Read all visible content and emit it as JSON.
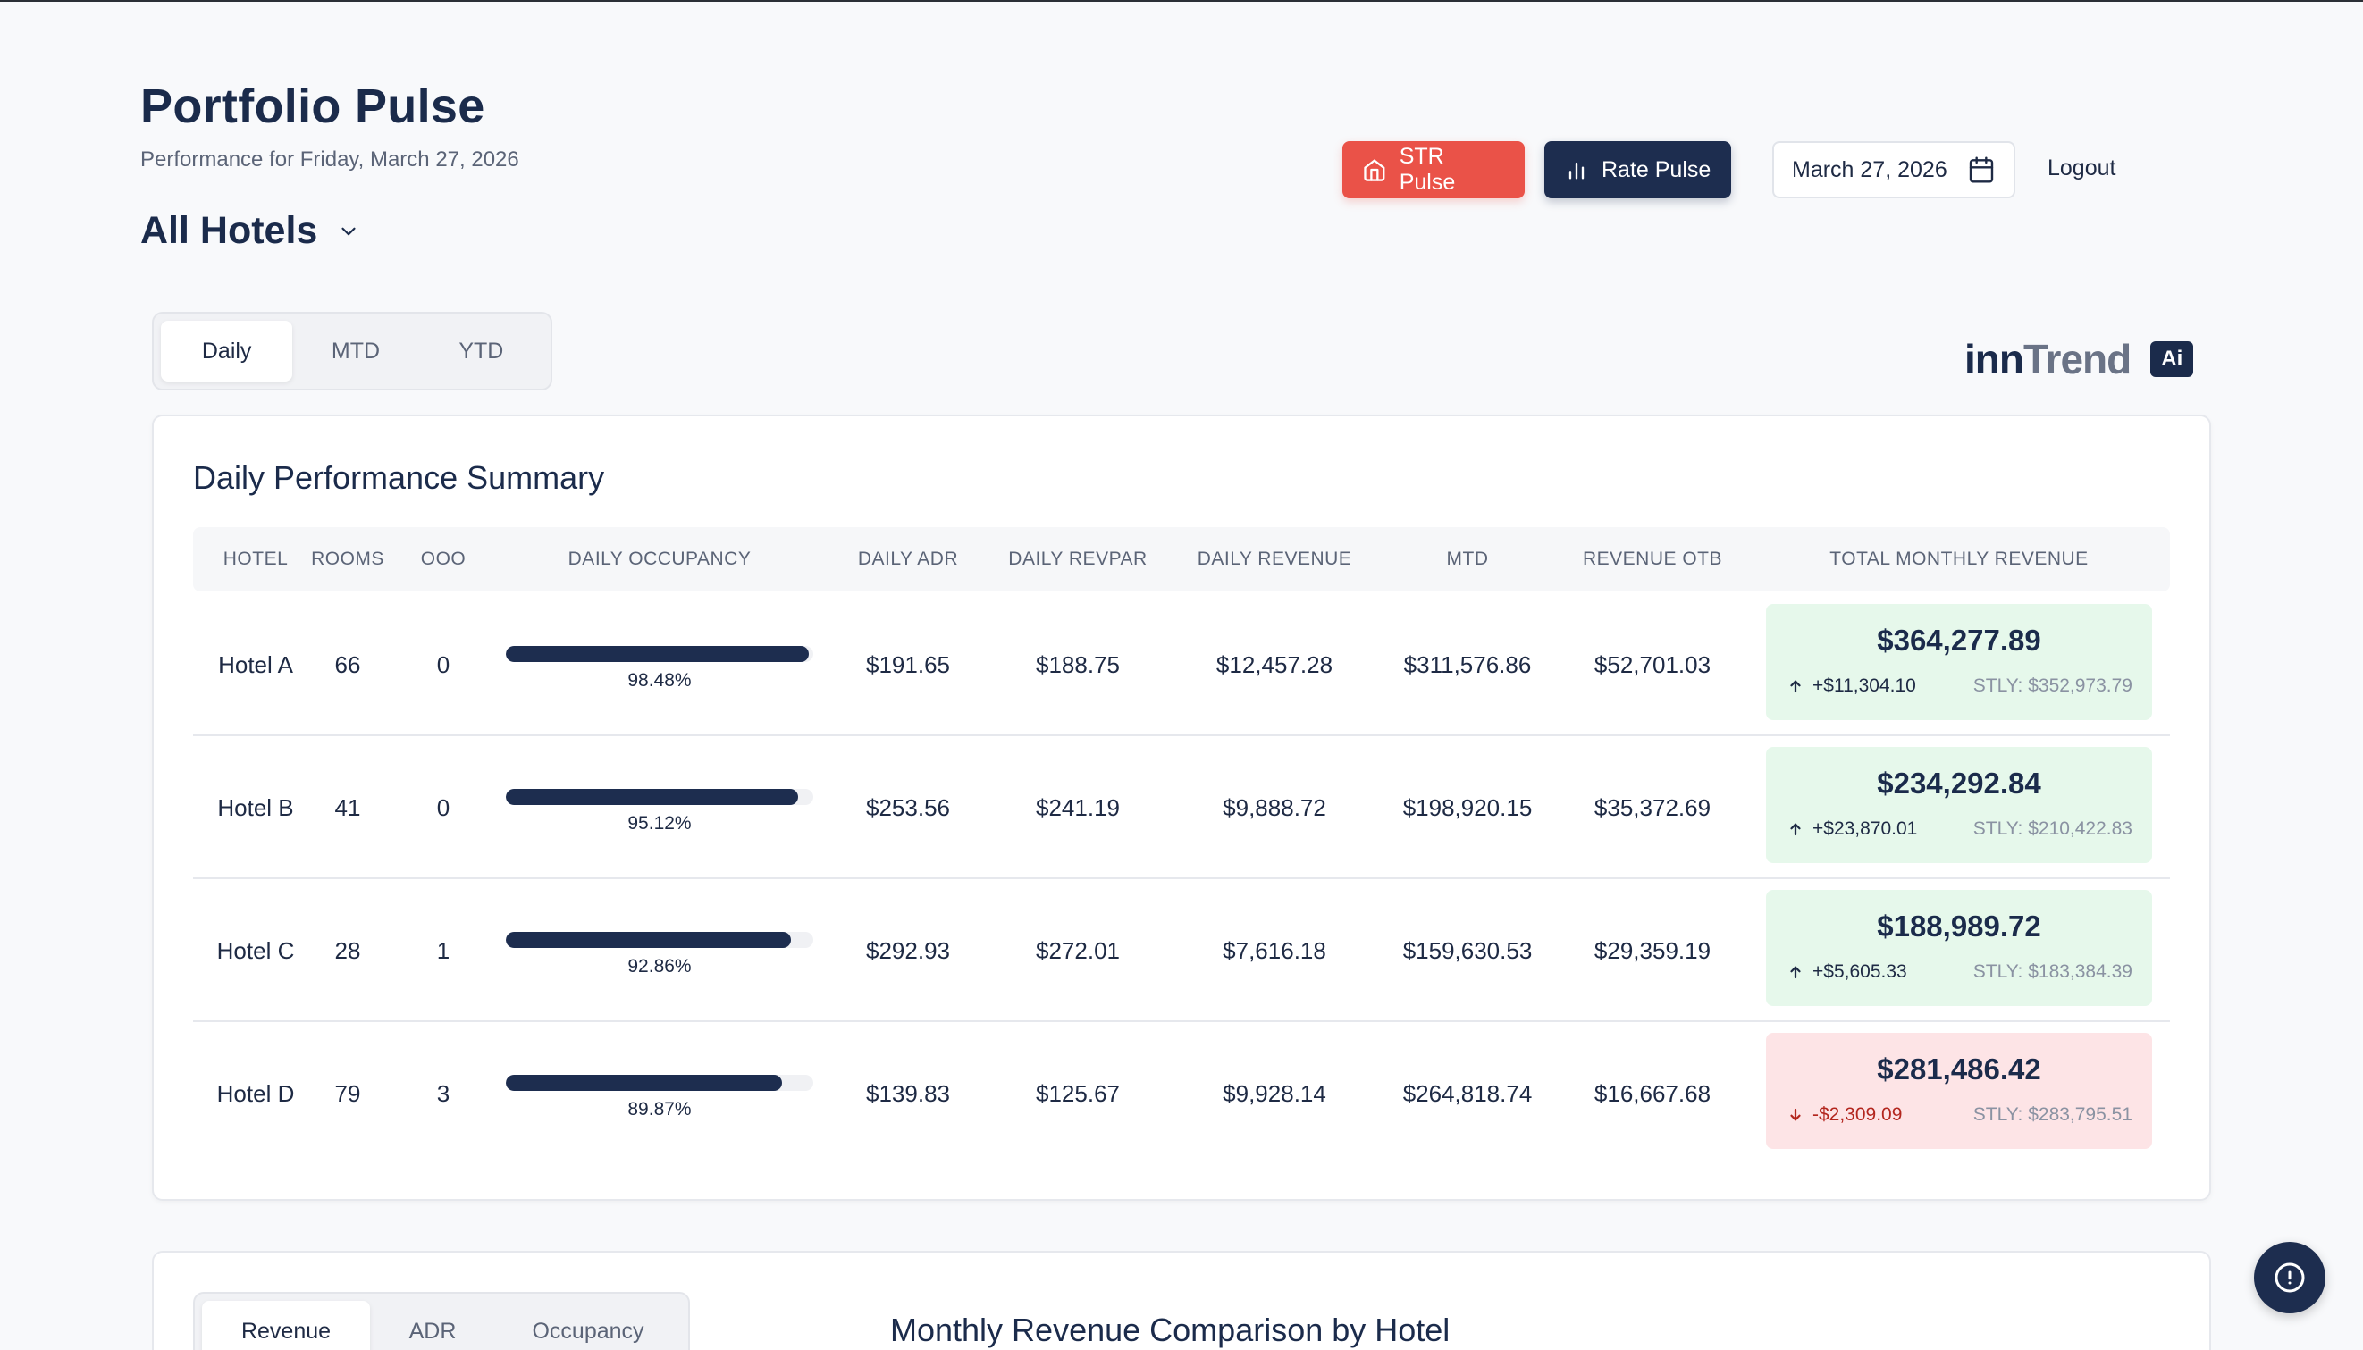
{
  "header": {
    "title": "Portfolio Pulse",
    "subtitle": "Performance for Friday, March 27, 2026",
    "hotel_selector": "All Hotels"
  },
  "toolbar": {
    "str_pulse": "STR Pulse",
    "rate_pulse": "Rate Pulse",
    "date": "March 27, 2026",
    "logout": "Logout",
    "colors": {
      "str": "#ea5248",
      "rate": "#1d2d4f"
    }
  },
  "period_tabs": [
    "Daily",
    "MTD",
    "YTD"
  ],
  "active_period": "Daily",
  "logo": {
    "inn": "inn",
    "trend": "Trend",
    "badge": "Ai"
  },
  "summary": {
    "title": "Daily Performance Summary",
    "columns": [
      "HOTEL",
      "ROOMS",
      "OOO",
      "DAILY OCCUPANCY",
      "DAILY ADR",
      "DAILY REVPAR",
      "DAILY REVENUE",
      "MTD",
      "REVENUE OTB",
      "TOTAL MONTHLY REVENUE"
    ],
    "rows": [
      {
        "hotel": "Hotel A",
        "rooms": "66",
        "ooo": "0",
        "occupancy": "98.48%",
        "occupancy_value": 98.48,
        "adr": "$191.65",
        "revpar": "$188.75",
        "revenue": "$12,457.28",
        "mtd": "$311,576.86",
        "otb": "$52,701.03",
        "total": "$364,277.89",
        "delta": "+$11,304.10",
        "trend": "up",
        "stly": "STLY: $352,973.79"
      },
      {
        "hotel": "Hotel B",
        "rooms": "41",
        "ooo": "0",
        "occupancy": "95.12%",
        "occupancy_value": 95.12,
        "adr": "$253.56",
        "revpar": "$241.19",
        "revenue": "$9,888.72",
        "mtd": "$198,920.15",
        "otb": "$35,372.69",
        "total": "$234,292.84",
        "delta": "+$23,870.01",
        "trend": "up",
        "stly": "STLY: $210,422.83"
      },
      {
        "hotel": "Hotel C",
        "rooms": "28",
        "ooo": "1",
        "occupancy": "92.86%",
        "occupancy_value": 92.86,
        "adr": "$292.93",
        "revpar": "$272.01",
        "revenue": "$7,616.18",
        "mtd": "$159,630.53",
        "otb": "$29,359.19",
        "total": "$188,989.72",
        "delta": "+$5,605.33",
        "trend": "up",
        "stly": "STLY: $183,384.39"
      },
      {
        "hotel": "Hotel D",
        "rooms": "79",
        "ooo": "3",
        "occupancy": "89.87%",
        "occupancy_value": 89.87,
        "adr": "$139.83",
        "revpar": "$125.67",
        "revenue": "$9,928.14",
        "mtd": "$264,818.74",
        "otb": "$16,667.68",
        "total": "$281,486.42",
        "delta": "-$2,309.09",
        "trend": "down",
        "stly": "STLY: $283,795.51"
      }
    ]
  },
  "comparison": {
    "tabs": [
      "Revenue",
      "ADR",
      "Occupancy"
    ],
    "active_tab": "Revenue",
    "title": "Monthly Revenue Comparison by Hotel"
  },
  "help_icon": "alert-circle-icon"
}
